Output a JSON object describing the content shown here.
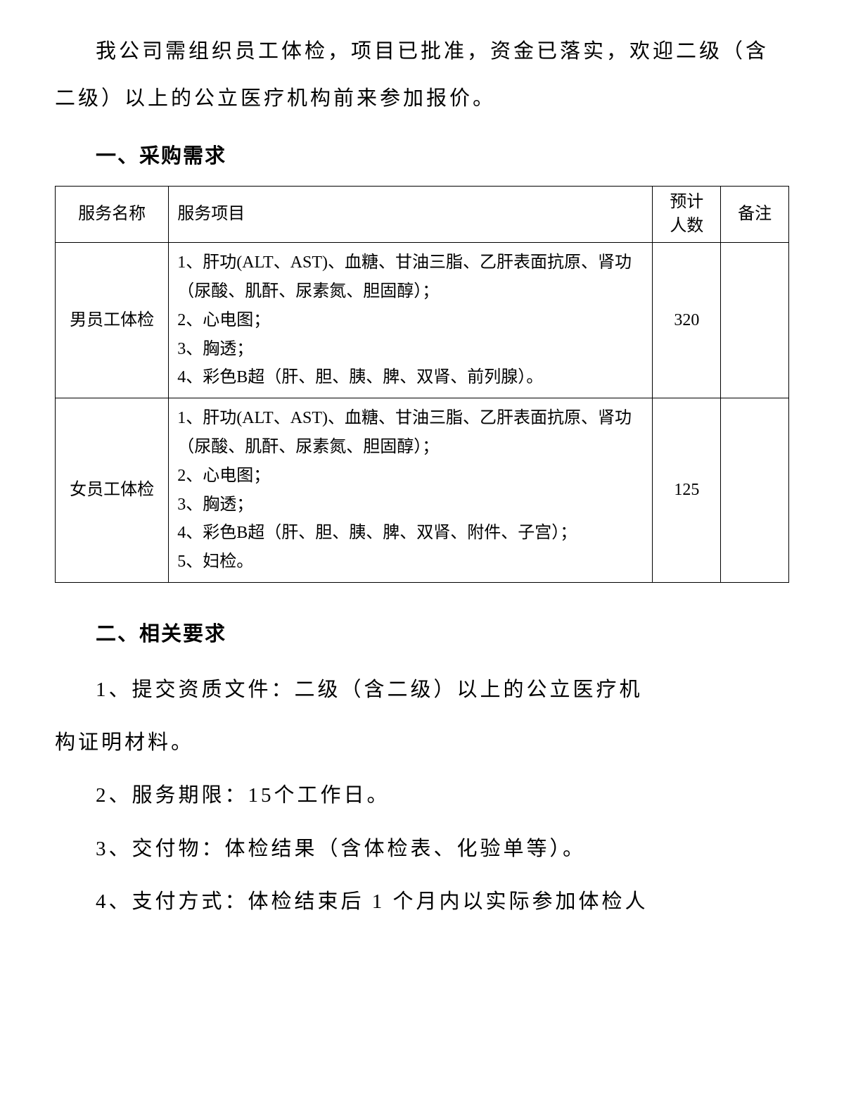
{
  "intro": "我公司需组织员工体检，项目已批准，资金已落实，欢迎二级（含二级）以上的公立医疗机构前来参加报价。",
  "section1": {
    "heading": "一、采购需求",
    "table": {
      "headers": {
        "name": "服务名称",
        "items": "服务项目",
        "count_line1": "预计",
        "count_line2": "人数",
        "remark": "备注"
      },
      "rows": [
        {
          "name": "男员工体检",
          "item1": "1、肝功(ALT、AST)、血糖、甘油三脂、乙肝表面抗原、肾功（尿酸、肌酐、尿素氮、胆固醇）；",
          "item2": "2、心电图；",
          "item3": "3、胸透；",
          "item4": "4、彩色B超（肝、胆、胰、脾、双肾、前列腺）。",
          "count": "320",
          "remark": ""
        },
        {
          "name": "女员工体检",
          "item1": "1、肝功(ALT、AST)、血糖、甘油三脂、乙肝表面抗原、肾功（尿酸、肌酐、尿素氮、胆固醇）；",
          "item2": "2、心电图；",
          "item3": "3、胸透；",
          "item4": "4、彩色B超（肝、胆、胰、脾、双肾、附件、子宫）；",
          "item5": "5、妇检。",
          "count": "125",
          "remark": ""
        }
      ]
    }
  },
  "section2": {
    "heading": "二、相关要求",
    "req1_line1": "1、提交资质文件：二级（含二级）以上的公立医疗机",
    "req1_line2": "构证明材料。",
    "req2": "2、服务期限：15个工作日。",
    "req3": "3、交付物：体检结果（含体检表、化验单等）。",
    "req4": "4、支付方式：体检结束后 1 个月内以实际参加体检人"
  },
  "styling": {
    "background_color": "#ffffff",
    "text_color": "#000000",
    "border_color": "#000000",
    "body_font_size": 29,
    "table_font_size": 24,
    "font_family": "SimSun"
  }
}
